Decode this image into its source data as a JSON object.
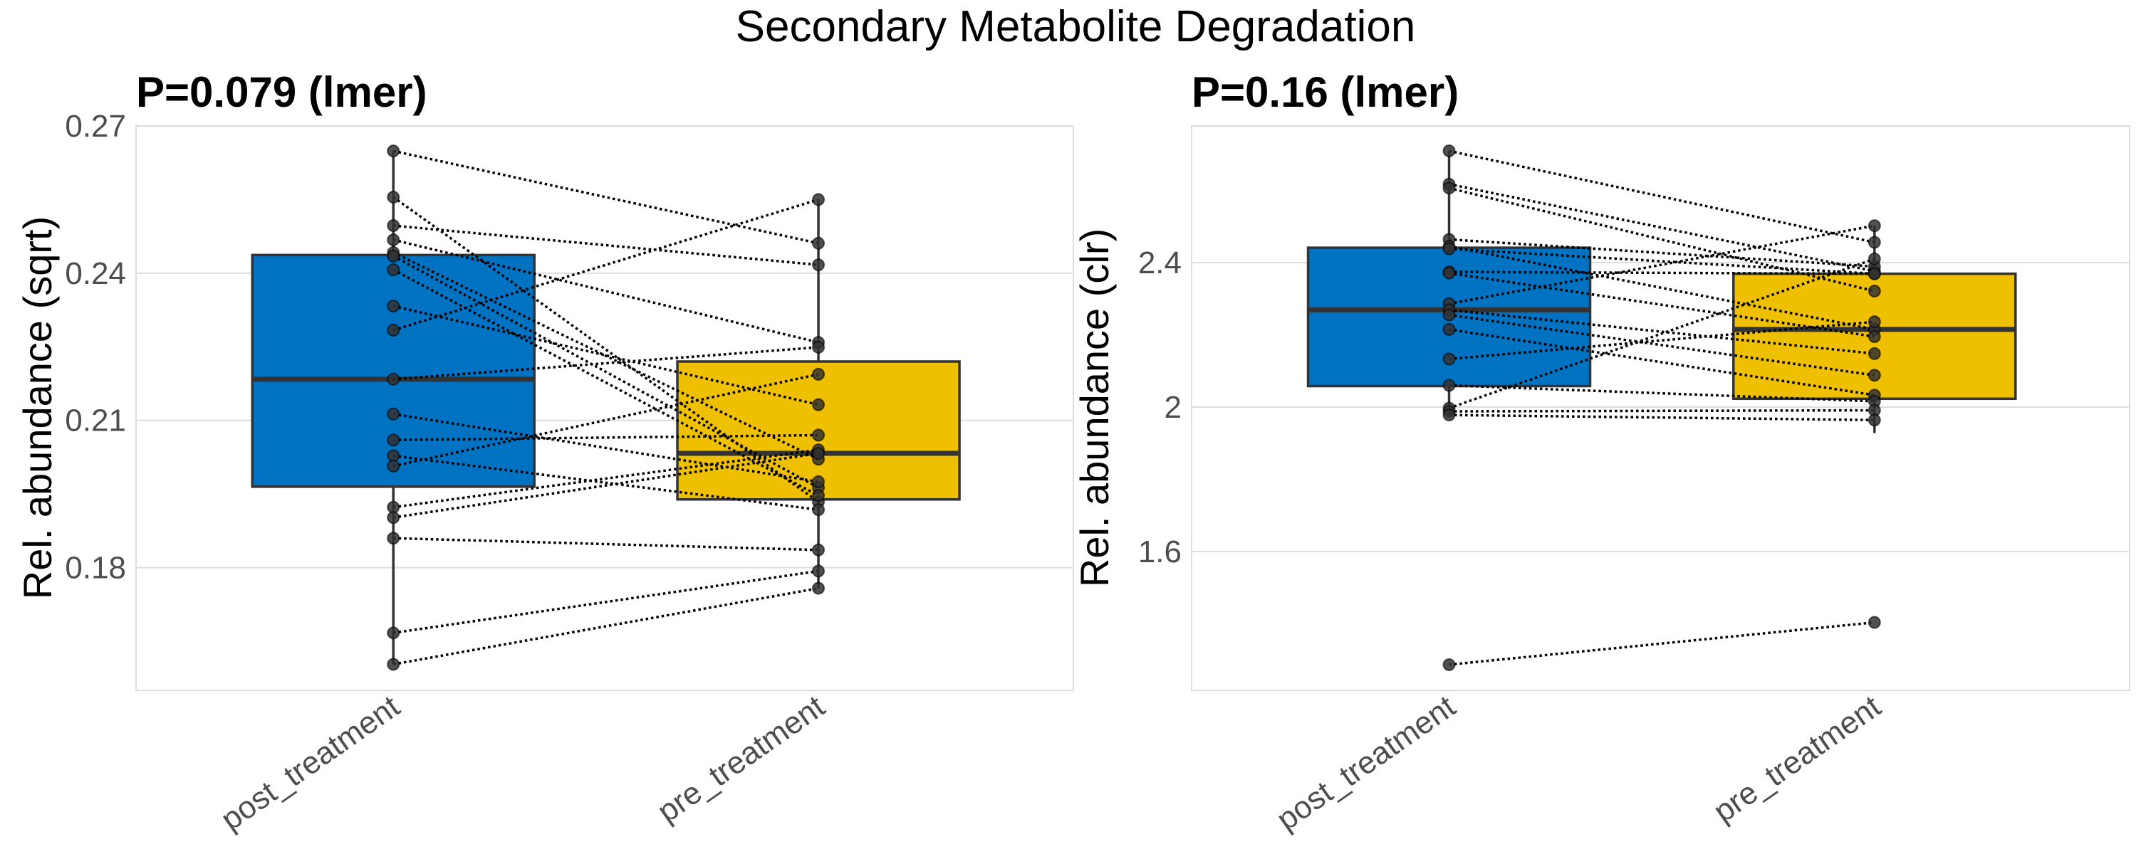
{
  "figure": {
    "title": "Secondary Metabolite Degradation"
  },
  "colors": {
    "post_treatment": "#0072C2",
    "pre_treatment": "#EFC000",
    "box_outline": "#333333",
    "point": "#333333",
    "grid": "#DDDDDD"
  },
  "chart_data": [
    {
      "type": "box",
      "title": "P=0.079 (lmer)",
      "xlabel": "",
      "ylabel": "Rel. abundance (sqrt)",
      "categories": [
        "post_treatment",
        "pre_treatment"
      ],
      "yticks": [
        0.18,
        0.21,
        0.24,
        0.27
      ],
      "ytick_labels": [
        "0.18",
        "0.21",
        "0.24",
        "0.27"
      ],
      "ylim": [
        0.155,
        0.27
      ],
      "grid": true,
      "boxes": [
        {
          "category": "post_treatment",
          "q1": 0.1965,
          "median": 0.2184,
          "q3": 0.2437,
          "whisker_low": 0.1603,
          "whisker_high": 0.2649
        },
        {
          "category": "pre_treatment",
          "q1": 0.1939,
          "median": 0.2033,
          "q3": 0.222,
          "whisker_low": 0.1758,
          "whisker_high": 0.255
        }
      ],
      "paired_points": {
        "post_treatment": [
          0.2649,
          0.2555,
          0.2497,
          0.2468,
          0.2442,
          0.2435,
          0.2407,
          0.2333,
          0.2284,
          0.2184,
          0.2113,
          0.206,
          0.2028,
          0.2007,
          0.1923,
          0.1902,
          0.186,
          0.1667,
          0.1603
        ],
        "pre_treatment": [
          0.2461,
          0.1934,
          0.2417,
          0.2259,
          0.2021,
          0.1963,
          0.1947,
          0.2132,
          0.255,
          0.2249,
          0.1975,
          0.207,
          0.1918,
          0.2194,
          0.204,
          0.2033,
          0.1836,
          0.1793,
          0.1758
        ]
      }
    },
    {
      "type": "box",
      "title": "P=0.16 (lmer)",
      "xlabel": "",
      "ylabel": "Rel. abundance (clr)",
      "categories": [
        "post_treatment",
        "pre_treatment"
      ],
      "yticks": [
        1.6,
        2.0,
        2.4
      ],
      "ytick_labels": [
        "1.6",
        "2",
        "2.4"
      ],
      "ylim": [
        1.216,
        2.778
      ],
      "grid": true,
      "boxes": [
        {
          "category": "post_treatment",
          "q1": 2.058,
          "median": 2.269,
          "q3": 2.441,
          "whisker_low": 1.978,
          "whisker_high": 2.709
        },
        {
          "category": "pre_treatment",
          "q1": 2.023,
          "median": 2.215,
          "q3": 2.369,
          "whisker_low": 1.928,
          "whisker_high": 2.502
        }
      ],
      "outliers": {
        "post_treatment": [
          1.287
        ],
        "pre_treatment": [
          1.404
        ]
      },
      "paired_points": {
        "post_treatment": [
          2.709,
          2.617,
          2.606,
          2.464,
          2.445,
          2.438,
          2.374,
          2.371,
          2.286,
          2.269,
          2.255,
          2.215,
          2.133,
          2.06,
          1.997,
          1.988,
          1.978,
          1.287
        ],
        "pre_treatment": [
          2.456,
          2.376,
          2.321,
          2.389,
          2.215,
          2.369,
          2.369,
          2.195,
          2.502,
          2.148,
          2.088,
          2.033,
          2.236,
          2.016,
          2.41,
          1.991,
          1.964,
          1.404
        ]
      }
    }
  ]
}
